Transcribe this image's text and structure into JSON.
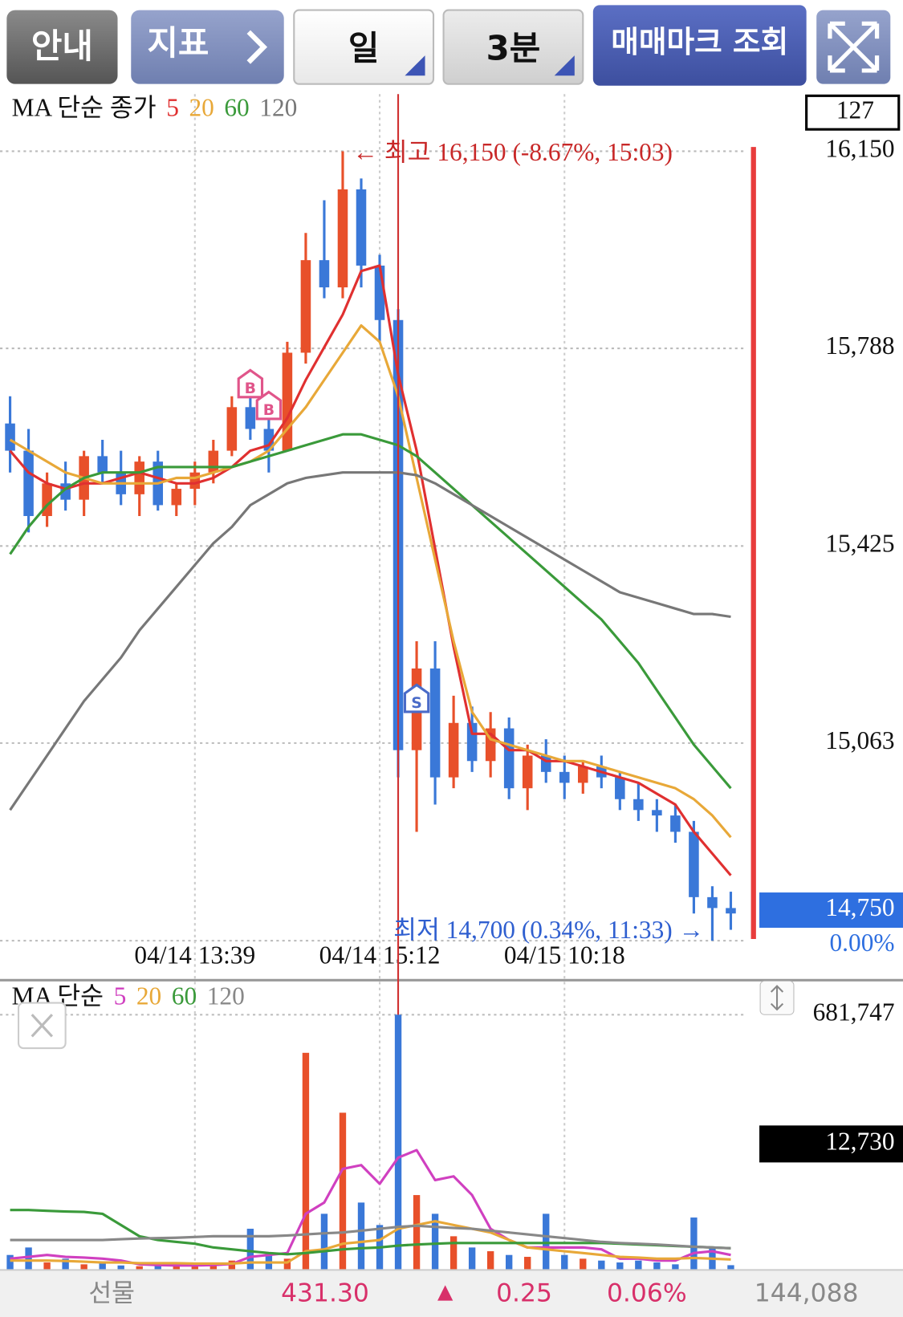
{
  "toolbar": [
    "안내",
    "지표",
    "일",
    "3분",
    "매매마크 조회"
  ],
  "chart_data": [
    {
      "type": "candlestick",
      "legend_title": "MA 단순 종가",
      "categories": [
        null,
        null,
        null,
        null,
        null,
        null,
        null,
        null,
        null,
        null,
        "04/14 13:39",
        null,
        null,
        null,
        null,
        null,
        null,
        null,
        null,
        null,
        "04/14 15:12",
        null,
        null,
        null,
        null,
        null,
        null,
        null,
        null,
        null,
        "04/15 10:18",
        null,
        null,
        null,
        null,
        null,
        null,
        null,
        null,
        null
      ],
      "open": [
        15650,
        15600,
        15480,
        15540,
        15510,
        15590,
        15560,
        15520,
        15580,
        15500,
        15530,
        15560,
        15600,
        15680,
        15640,
        15600,
        15780,
        15950,
        15900,
        16080,
        15940,
        15840,
        15050,
        15200,
        15000,
        15100,
        15030,
        15090,
        14980,
        15040,
        15010,
        14990,
        15020,
        15000,
        14960,
        14940,
        14930,
        14900,
        14780,
        14760
      ],
      "high": [
        15700,
        15640,
        15560,
        15580,
        15600,
        15620,
        15600,
        15590,
        15600,
        15540,
        15580,
        15620,
        15700,
        15720,
        15680,
        15800,
        16000,
        16060,
        16150,
        16100,
        15960,
        15860,
        15250,
        15250,
        15150,
        15130,
        15120,
        15110,
        15060,
        15070,
        15040,
        15030,
        15040,
        15010,
        14990,
        14960,
        14950,
        14920,
        14800,
        14790
      ],
      "low": [
        15560,
        15450,
        15460,
        15490,
        15480,
        15540,
        15500,
        15480,
        15490,
        15480,
        15500,
        15540,
        15590,
        15620,
        15560,
        15600,
        15760,
        15880,
        15880,
        15900,
        15800,
        15000,
        14900,
        14950,
        14980,
        15010,
        15000,
        14960,
        14940,
        14990,
        14960,
        14970,
        14980,
        14940,
        14920,
        14900,
        14880,
        14750,
        14700,
        14720
      ],
      "close": [
        15600,
        15480,
        15540,
        15510,
        15590,
        15560,
        15520,
        15580,
        15500,
        15530,
        15560,
        15600,
        15680,
        15640,
        15600,
        15780,
        15950,
        15900,
        16080,
        15940,
        15840,
        15050,
        15200,
        15000,
        15100,
        15030,
        15090,
        14980,
        15040,
        15010,
        14990,
        15020,
        15000,
        14960,
        14940,
        14930,
        14900,
        14780,
        14760,
        14750
      ],
      "up_color": "#e8502a",
      "down_color": "#3a78d8",
      "trade_marks": [
        null,
        null,
        null,
        null,
        null,
        null,
        null,
        null,
        null,
        null,
        null,
        null,
        null,
        "B",
        "B",
        null,
        null,
        null,
        null,
        null,
        null,
        null,
        "S",
        null,
        null,
        null,
        null,
        null,
        null,
        null,
        null,
        null,
        null,
        null,
        null,
        null,
        null,
        null,
        null,
        null
      ],
      "series": [
        {
          "name": "5",
          "color": "#e03030",
          "values": [
            15600,
            15560,
            15540,
            15530,
            15540,
            15540,
            15550,
            15560,
            15550,
            15540,
            15540,
            15550,
            15570,
            15600,
            15610,
            15660,
            15730,
            15790,
            15850,
            15930,
            15940,
            15740,
            15600,
            15420,
            15240,
            15080,
            15080,
            15050,
            15050,
            15030,
            15030,
            15020,
            15010,
            15000,
            14990,
            14970,
            14950,
            14900,
            14860,
            14820
          ]
        },
        {
          "name": "20",
          "color": "#e8a838",
          "values": [
            15620,
            15600,
            15580,
            15560,
            15550,
            15540,
            15540,
            15540,
            15540,
            15550,
            15550,
            15560,
            15570,
            15580,
            15600,
            15640,
            15680,
            15730,
            15780,
            15830,
            15800,
            15700,
            15550,
            15400,
            15250,
            15120,
            15070,
            15060,
            15050,
            15040,
            15030,
            15030,
            15020,
            15010,
            15000,
            14990,
            14980,
            14960,
            14930,
            14890
          ]
        },
        {
          "name": "60",
          "color": "#3a9a3a",
          "values": [
            15410,
            15460,
            15500,
            15530,
            15550,
            15560,
            15560,
            15560,
            15570,
            15570,
            15570,
            15570,
            15570,
            15580,
            15590,
            15600,
            15610,
            15620,
            15630,
            15630,
            15620,
            15610,
            15590,
            15560,
            15530,
            15500,
            15470,
            15440,
            15410,
            15380,
            15350,
            15320,
            15290,
            15250,
            15210,
            15160,
            15110,
            15060,
            15020,
            14980
          ]
        },
        {
          "name": "120",
          "color": "#777777",
          "values": [
            14940,
            14990,
            15040,
            15090,
            15140,
            15180,
            15220,
            15270,
            15310,
            15350,
            15390,
            15430,
            15460,
            15500,
            15520,
            15540,
            15550,
            15555,
            15560,
            15560,
            15560,
            15560,
            15555,
            15540,
            15520,
            15500,
            15480,
            15460,
            15440,
            15420,
            15400,
            15380,
            15360,
            15340,
            15330,
            15320,
            15310,
            15300,
            15300,
            15295
          ]
        }
      ],
      "ylim": [
        14700,
        16255
      ],
      "yticks": [
        {
          "value": 15063,
          "label": "15,063"
        },
        {
          "value": 15425,
          "label": "15,425"
        },
        {
          "value": 15788,
          "label": "15,788"
        },
        {
          "value": 16150,
          "label": "16,150"
        }
      ],
      "grid": true,
      "high_annotation": "← 최고 16,150 (-8.67%, 15:03)",
      "low_annotation": "최저 14,700 (0.34%, 11:33) →",
      "current_price": {
        "value": 14750,
        "label": "14,750"
      },
      "change": "0.00%",
      "info_box": "127"
    },
    {
      "type": "bar",
      "legend_title": "MA 단순",
      "values": [
        40000,
        60000,
        20000,
        30000,
        15000,
        20000,
        12000,
        10000,
        15000,
        10000,
        12000,
        18000,
        25000,
        110000,
        40000,
        30000,
        580000,
        150000,
        420000,
        180000,
        120000,
        681747,
        200000,
        150000,
        90000,
        60000,
        50000,
        40000,
        35000,
        150000,
        40000,
        30000,
        25000,
        20000,
        25000,
        20000,
        15000,
        140000,
        60000,
        12730
      ],
      "series": [
        {
          "name": "5",
          "color": "#d040c0",
          "values": [
            30000,
            35000,
            40000,
            35000,
            33000,
            30000,
            25000,
            15000,
            13000,
            12000,
            12000,
            13000,
            16000,
            35000,
            40000,
            45000,
            150000,
            180000,
            270000,
            280000,
            230000,
            300000,
            320000,
            240000,
            250000,
            200000,
            110000,
            80000,
            60000,
            60000,
            60000,
            60000,
            55000,
            30000,
            30000,
            25000,
            25000,
            45000,
            50000,
            40000
          ]
        },
        {
          "name": "20",
          "color": "#e8a838",
          "values": [
            25000,
            25000,
            25000,
            24000,
            22000,
            20000,
            20000,
            18000,
            18000,
            18000,
            17000,
            17000,
            17000,
            20000,
            20000,
            20000,
            50000,
            55000,
            70000,
            75000,
            80000,
            110000,
            120000,
            130000,
            120000,
            110000,
            100000,
            80000,
            60000,
            55000,
            50000,
            45000,
            40000,
            35000,
            33000,
            30000,
            30000,
            32000,
            30000,
            28000
          ]
        },
        {
          "name": "60",
          "color": "#3a9a3a",
          "values": [
            160000,
            160000,
            158000,
            156000,
            155000,
            150000,
            120000,
            90000,
            80000,
            75000,
            70000,
            60000,
            55000,
            50000,
            45000,
            42000,
            45000,
            50000,
            55000,
            58000,
            60000,
            65000,
            68000,
            70000,
            72000,
            72000,
            72000,
            72000,
            72000,
            72000,
            72000,
            72000,
            72000,
            70000,
            68000,
            66000,
            64000,
            62000,
            60000,
            58000
          ]
        },
        {
          "name": "120",
          "color": "#888888",
          "values": [
            80000,
            80000,
            80000,
            80000,
            80000,
            80000,
            82000,
            84000,
            85000,
            86000,
            88000,
            90000,
            90000,
            90000,
            90000,
            92000,
            95000,
            98000,
            100000,
            105000,
            110000,
            115000,
            118000,
            115000,
            112000,
            110000,
            105000,
            100000,
            95000,
            90000,
            85000,
            80000,
            75000,
            72000,
            70000,
            68000,
            65000,
            62000,
            60000,
            58000
          ]
        }
      ],
      "ylim": [
        0,
        700000
      ],
      "yticks": [
        {
          "value": 681747,
          "label": "681,747"
        }
      ],
      "grid": true,
      "current_label": "12,730"
    }
  ],
  "status_bar": {
    "label": "선물",
    "price": "431.30",
    "arrow": "▲",
    "change": "0.25",
    "change_pct": "0.06%",
    "volume": "144,088"
  }
}
